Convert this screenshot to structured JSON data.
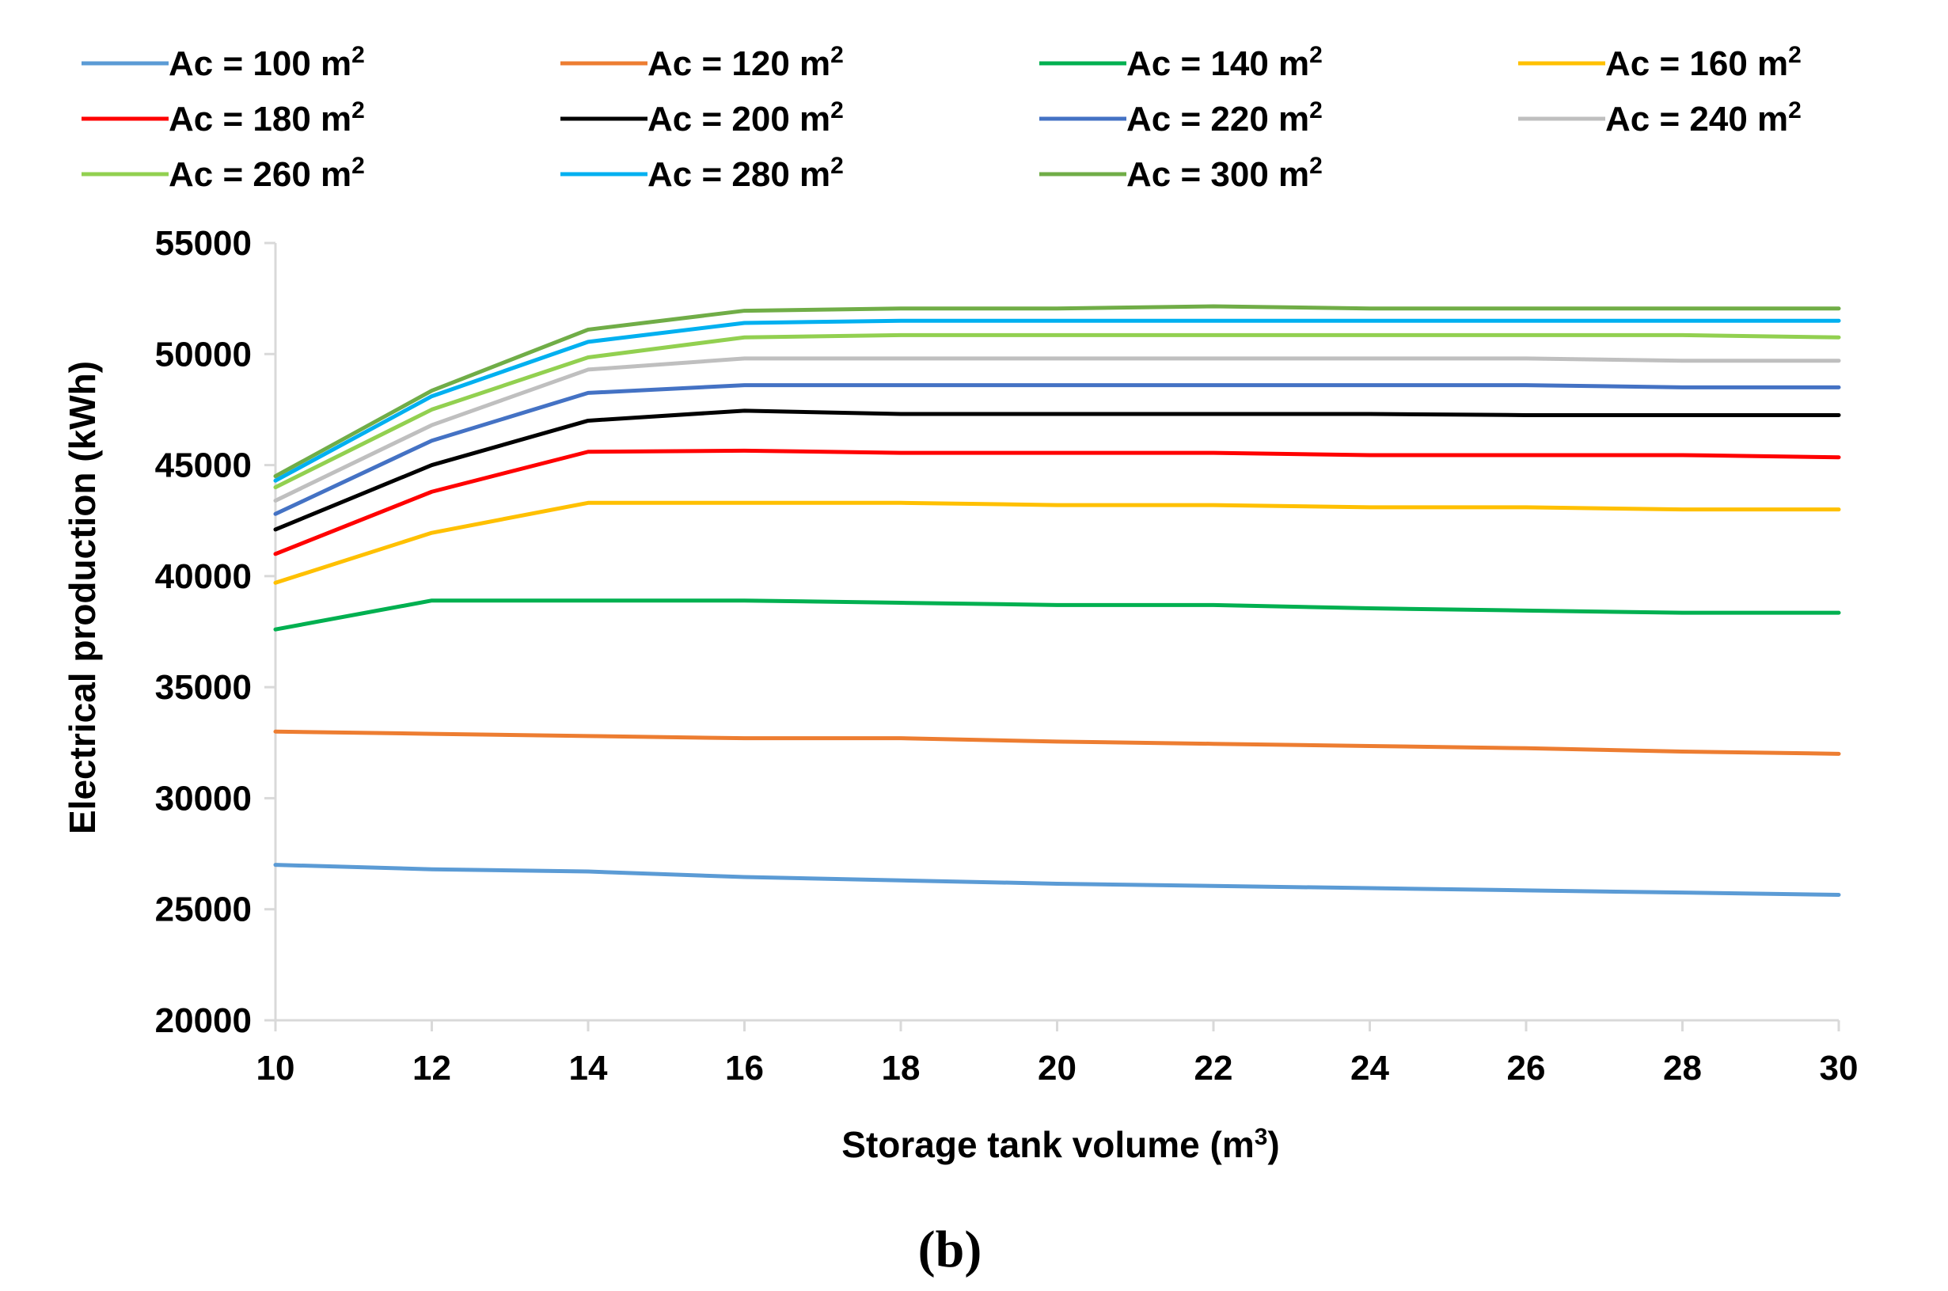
{
  "chart_data": {
    "type": "line",
    "title": "",
    "panel_label": "(b)",
    "xlabel": "Storage tank volume (m",
    "xlabel_sup": "3",
    "xlabel_close": ")",
    "ylabel": "Electrical production (kWh)",
    "x": [
      10,
      12,
      14,
      16,
      18,
      20,
      22,
      24,
      26,
      28,
      30
    ],
    "xlim": [
      10,
      30
    ],
    "ylim": [
      20000,
      55000
    ],
    "xticks": [
      "10",
      "12",
      "14",
      "16",
      "18",
      "20",
      "22",
      "24",
      "26",
      "28",
      "30"
    ],
    "yticks": [
      "20000",
      "25000",
      "30000",
      "35000",
      "40000",
      "45000",
      "50000",
      "55000"
    ],
    "legend_position": "top",
    "legend_unit": "m",
    "legend_unit_sup": "2",
    "series": [
      {
        "name": "Ac = 100",
        "color": "#5b9bd5",
        "values": [
          27000,
          26800,
          26700,
          26450,
          26300,
          26150,
          26050,
          25950,
          25850,
          25750,
          25650
        ]
      },
      {
        "name": "Ac = 120",
        "color": "#ed7d31",
        "values": [
          33000,
          32900,
          32800,
          32700,
          32700,
          32550,
          32450,
          32350,
          32250,
          32100,
          32000
        ]
      },
      {
        "name": "Ac = 140",
        "color": "#00b050",
        "values": [
          37600,
          38900,
          38900,
          38900,
          38800,
          38700,
          38700,
          38550,
          38450,
          38350,
          38350
        ]
      },
      {
        "name": "Ac = 160",
        "color": "#ffc000",
        "values": [
          39700,
          41950,
          43300,
          43300,
          43300,
          43200,
          43200,
          43100,
          43100,
          43000,
          43000
        ]
      },
      {
        "name": "Ac = 180",
        "color": "#ff0000",
        "values": [
          41000,
          43800,
          45600,
          45650,
          45550,
          45550,
          45550,
          45450,
          45450,
          45450,
          45350
        ]
      },
      {
        "name": "Ac = 200",
        "color": "#000000",
        "values": [
          42100,
          45000,
          47000,
          47450,
          47300,
          47300,
          47300,
          47300,
          47250,
          47250,
          47250
        ]
      },
      {
        "name": "Ac = 220",
        "color": "#4472c4",
        "values": [
          42800,
          46100,
          48250,
          48600,
          48600,
          48600,
          48600,
          48600,
          48600,
          48500,
          48500
        ]
      },
      {
        "name": "Ac = 240",
        "color": "#bfbfbf",
        "values": [
          43400,
          46800,
          49300,
          49800,
          49800,
          49800,
          49800,
          49800,
          49800,
          49700,
          49700
        ]
      },
      {
        "name": "Ac = 260",
        "color": "#92d050",
        "values": [
          44000,
          47500,
          49850,
          50750,
          50850,
          50850,
          50850,
          50850,
          50850,
          50850,
          50750
        ]
      },
      {
        "name": "Ac = 280",
        "color": "#00b0f0",
        "values": [
          44300,
          48100,
          50550,
          51400,
          51500,
          51500,
          51500,
          51500,
          51500,
          51500,
          51500
        ]
      },
      {
        "name": "Ac = 300",
        "color": "#70ad47",
        "values": [
          44500,
          48350,
          51100,
          51950,
          52050,
          52050,
          52150,
          52050,
          52050,
          52050,
          52050
        ]
      }
    ]
  }
}
